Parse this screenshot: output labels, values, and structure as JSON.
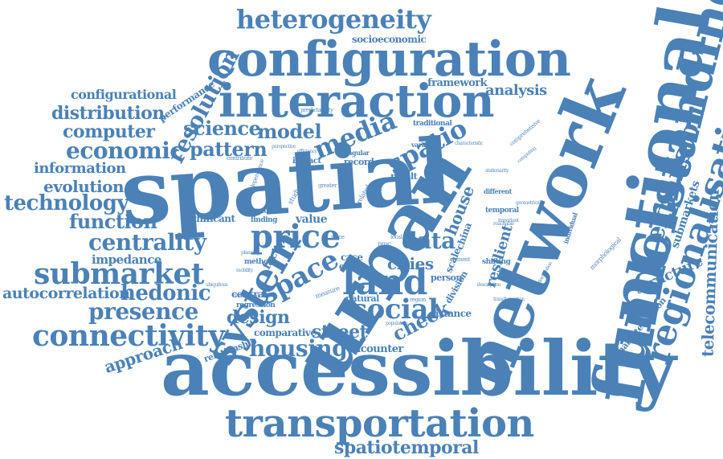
{
  "title": "",
  "accent_color": "#4a82b8",
  "background_color": "#ffffff",
  "words": [
    {
      "id": "spatial",
      "text": "spatial"
    },
    {
      "id": "accessibility",
      "text": "accessibility"
    },
    {
      "id": "urban",
      "text": "urban"
    },
    {
      "id": "network",
      "text": "network"
    },
    {
      "id": "functional",
      "text": "functional"
    },
    {
      "id": "configuration",
      "text": "configuration"
    },
    {
      "id": "interaction",
      "text": "interaction"
    },
    {
      "id": "understanding",
      "text": "understanding"
    },
    {
      "id": "transportation",
      "text": "transportation"
    },
    {
      "id": "regionalisation",
      "text": "regionalisation"
    },
    {
      "id": "system",
      "text": "system"
    },
    {
      "id": "heterogeneity",
      "text": "heterogeneity"
    },
    {
      "id": "land",
      "text": "land"
    },
    {
      "id": "social",
      "text": "social"
    },
    {
      "id": "submarket",
      "text": "submarket"
    },
    {
      "id": "connectivity",
      "text": "connectivity"
    },
    {
      "id": "price",
      "text": "price"
    },
    {
      "id": "space",
      "text": "space"
    },
    {
      "id": "economic",
      "text": "economic"
    },
    {
      "id": "centrality",
      "text": "centrality"
    },
    {
      "id": "housing",
      "text": "housing"
    },
    {
      "id": "presence",
      "text": "presence"
    },
    {
      "id": "media",
      "text": "media"
    },
    {
      "id": "spatio",
      "text": "spatio"
    },
    {
      "id": "expansion",
      "text": "expansion"
    },
    {
      "id": "resolution",
      "text": "resolution"
    },
    {
      "id": "hedonic",
      "text": "hedonic"
    },
    {
      "id": "data",
      "text": "data"
    },
    {
      "id": "technology",
      "text": "technology"
    },
    {
      "id": "science",
      "text": "science"
    },
    {
      "id": "pattern",
      "text": "pattern"
    },
    {
      "id": "model",
      "text": "model"
    },
    {
      "id": "function",
      "text": "function"
    },
    {
      "id": "distribution",
      "text": "distribution"
    },
    {
      "id": "computer",
      "text": "computer"
    },
    {
      "id": "evolution",
      "text": "evolution"
    },
    {
      "id": "information",
      "text": "information"
    },
    {
      "id": "autocorrelation",
      "text": "autocorrelation"
    },
    {
      "id": "design",
      "text": "design"
    },
    {
      "id": "street",
      "text": "street"
    },
    {
      "id": "check",
      "text": "check"
    },
    {
      "id": "spatiotemporal",
      "text": "spatiotemporal"
    },
    {
      "id": "approach",
      "text": "approach"
    },
    {
      "id": "cities",
      "text": "cities"
    },
    {
      "id": "analysis",
      "text": "analysis"
    },
    {
      "id": "telecommunication",
      "text": "telecommunication"
    },
    {
      "id": "house",
      "text": "house"
    },
    {
      "id": "structure",
      "text": "structure"
    },
    {
      "id": "submarkets",
      "text": "submarkets"
    },
    {
      "id": "configurational",
      "text": "configurational"
    },
    {
      "id": "impedance",
      "text": "impedance"
    },
    {
      "id": "resilient",
      "text": "resilient"
    },
    {
      "id": "framework",
      "text": "framework"
    },
    {
      "id": "socioeconomic",
      "text": "socioeconomic"
    },
    {
      "id": "performance",
      "text": "performance"
    },
    {
      "id": "encounter",
      "text": "encounter"
    },
    {
      "id": "characterisation",
      "text": "characterisation"
    },
    {
      "id": "relationship",
      "text": "relationship"
    },
    {
      "id": "comparative",
      "text": "comparative"
    },
    {
      "id": "significant",
      "text": "significant"
    },
    {
      "id": "value",
      "text": "value"
    },
    {
      "id": "factor",
      "text": "factor"
    },
    {
      "id": "central",
      "text": "central"
    },
    {
      "id": "natural",
      "text": "natural"
    },
    {
      "id": "distance",
      "text": "distance"
    },
    {
      "id": "case",
      "text": "case"
    },
    {
      "id": "effect",
      "text": "effect"
    },
    {
      "id": "china",
      "text": "china"
    },
    {
      "id": "scale",
      "text": "scale"
    },
    {
      "id": "person",
      "text": "person"
    },
    {
      "id": "division",
      "text": "division"
    },
    {
      "id": "result",
      "text": "result"
    },
    {
      "id": "record",
      "text": "record"
    },
    {
      "id": "angular",
      "text": "angular"
    },
    {
      "id": "impact",
      "text": "impact"
    },
    {
      "id": "more",
      "text": "more"
    },
    {
      "id": "finding",
      "text": "finding"
    },
    {
      "id": "method",
      "text": "method"
    },
    {
      "id": "regression",
      "text": "regression"
    },
    {
      "id": "temporal",
      "text": "temporal"
    },
    {
      "id": "shifting",
      "text": "shifting"
    },
    {
      "id": "different",
      "text": "different"
    },
    {
      "id": "individual",
      "text": "individual"
    },
    {
      "id": "traditional",
      "text": "traditional"
    },
    {
      "id": "variation",
      "text": "variation"
    },
    {
      "id": "characteristic",
      "text": "characteristic"
    },
    {
      "id": "comprehensive",
      "text": "comprehensive"
    },
    {
      "id": "morphological",
      "text": "morphological"
    },
    {
      "id": "contribute",
      "text": "contribute"
    },
    {
      "id": "predictability",
      "text": "predictability"
    },
    {
      "id": "local",
      "text": "local"
    },
    {
      "id": "region",
      "text": "region"
    },
    {
      "id": "element",
      "text": "element"
    },
    {
      "id": "description",
      "text": "description"
    },
    {
      "id": "transformation",
      "text": "transformation"
    },
    {
      "id": "greater",
      "text": "greater"
    },
    {
      "id": "study",
      "text": "study"
    },
    {
      "id": "related",
      "text": "related"
    },
    {
      "id": "place",
      "text": "place"
    },
    {
      "id": "measure",
      "text": "measure"
    },
    {
      "id": "interdependence",
      "text": "interdependence"
    },
    {
      "id": "planning",
      "text": "planning"
    },
    {
      "id": "development",
      "text": "development"
    },
    {
      "id": "mobility",
      "text": "mobility"
    },
    {
      "id": "efficiency",
      "text": "efficiency"
    },
    {
      "id": "perspective",
      "text": "perspective"
    },
    {
      "id": "computing",
      "text": "computing"
    },
    {
      "id": "stationarity",
      "text": "stationarity"
    },
    {
      "id": "geometrical",
      "text": "geometrical"
    },
    {
      "id": "important",
      "text": "important"
    },
    {
      "id": "proc",
      "text": "proc"
    },
    {
      "id": "agglomeration",
      "text": "agglomeration"
    },
    {
      "id": "reachable",
      "text": "reachable"
    },
    {
      "id": "ubiquitous",
      "text": "ubiquitous"
    },
    {
      "id": "population",
      "text": "population"
    }
  ]
}
